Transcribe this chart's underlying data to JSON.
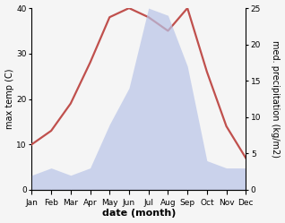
{
  "months": [
    "Jan",
    "Feb",
    "Mar",
    "Apr",
    "May",
    "Jun",
    "Jul",
    "Aug",
    "Sep",
    "Oct",
    "Nov",
    "Dec"
  ],
  "temperature": [
    10,
    13,
    19,
    28,
    38,
    40,
    38,
    35,
    40,
    26,
    14,
    7
  ],
  "precipitation": [
    2,
    3,
    2,
    3,
    9,
    14,
    25,
    24,
    17,
    4,
    3,
    3
  ],
  "temp_color": "#c0504d",
  "precip_fill_color": "#b8c4e8",
  "ylabel_left": "max temp (C)",
  "ylabel_right": "med. precipitation (kg/m2)",
  "xlabel": "date (month)",
  "ylim_left": [
    0,
    40
  ],
  "ylim_right": [
    0,
    25
  ],
  "bg_color": "#f5f5f5",
  "line_width": 1.6,
  "tick_label_size": 6.5,
  "axis_label_size": 7
}
